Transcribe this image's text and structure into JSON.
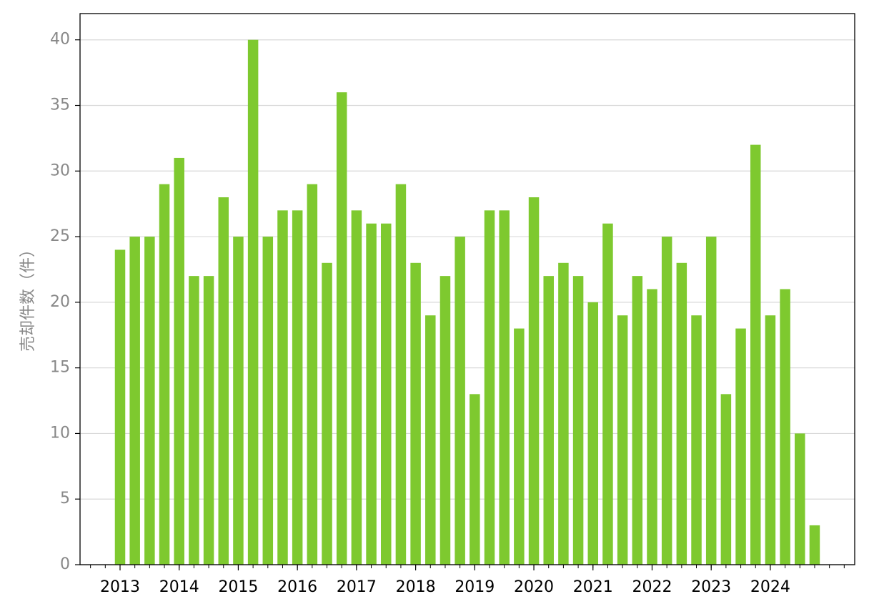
{
  "chart_data": {
    "type": "bar",
    "y_label": "売却件数（件）",
    "categories": [
      "2013",
      null,
      null,
      null,
      "2014",
      null,
      null,
      null,
      "2015",
      null,
      null,
      null,
      "2016",
      null,
      null,
      null,
      "2017",
      null,
      null,
      null,
      "2018",
      null,
      null,
      null,
      "2019",
      null,
      null,
      null,
      "2020",
      null,
      null,
      null,
      "2021",
      null,
      null,
      null,
      "2022",
      null,
      null,
      null,
      "2023",
      null,
      null,
      null,
      "2024",
      null,
      null,
      null
    ],
    "values": [
      24,
      25,
      25,
      29,
      31,
      22,
      22,
      28,
      25,
      40,
      25,
      27,
      27,
      29,
      23,
      36,
      27,
      26,
      26,
      29,
      23,
      19,
      22,
      25,
      13,
      27,
      27,
      18,
      28,
      22,
      23,
      22,
      20,
      26,
      19,
      22,
      21,
      25,
      23,
      19,
      25,
      13,
      18,
      32,
      19,
      21,
      10,
      3
    ],
    "color": "#7ec92f",
    "ylim": [
      0,
      42
    ],
    "yticks": [
      0,
      5,
      10,
      15,
      20,
      25,
      30,
      35,
      40
    ],
    "grid": true
  }
}
